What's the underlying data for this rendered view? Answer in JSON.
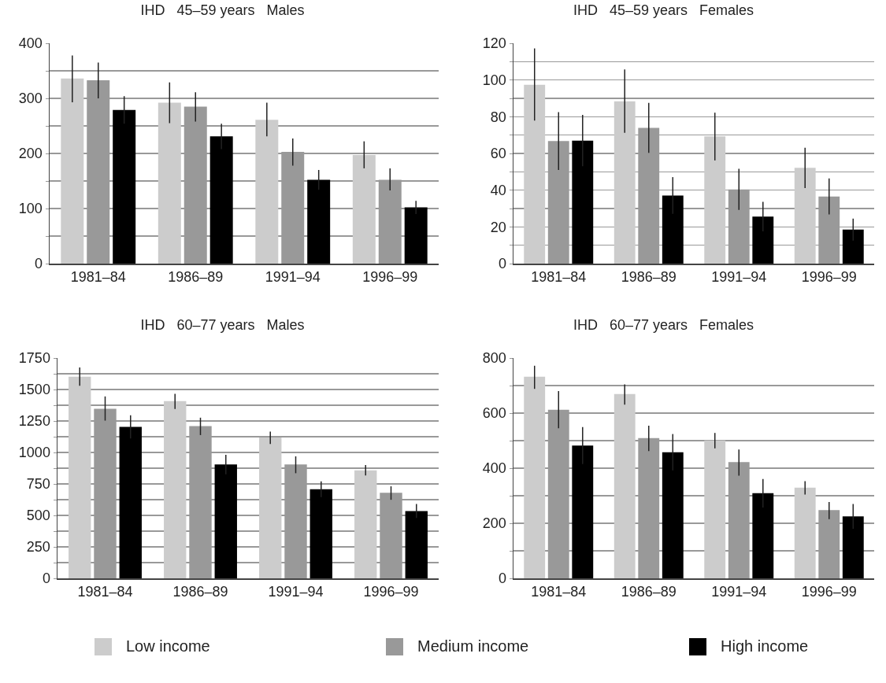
{
  "chart_data": [
    {
      "type": "bar",
      "title": "IHD   45–59 years   Males",
      "categories": [
        "1981–84",
        "1986–89",
        "1991–94",
        "1996–99"
      ],
      "ylim": [
        0,
        400
      ],
      "yticks": [
        0,
        {
          "value": 50,
          "label": null
        },
        100,
        {
          "value": 150,
          "label": null
        },
        200,
        {
          "value": 250,
          "label": null
        },
        300,
        {
          "value": 350,
          "label": null
        },
        400
      ],
      "grid": "y",
      "series": [
        {
          "color": "#cccccc",
          "values": [
            336,
            292,
            261,
            197
          ],
          "errors": [
            [
              293,
              378
            ],
            [
              255,
              329
            ],
            [
              231,
              292
            ],
            [
              173,
              222
            ]
          ]
        },
        {
          "color": "#999999",
          "values": [
            333,
            285,
            203,
            152
          ],
          "errors": [
            [
              300,
              365
            ],
            [
              258,
              311
            ],
            [
              178,
              227
            ],
            [
              133,
              173
            ]
          ]
        },
        {
          "color": "#000000",
          "values": [
            279,
            231,
            152,
            102
          ],
          "errors": [
            25,
            23,
            18,
            12
          ]
        }
      ]
    },
    {
      "type": "bar",
      "title": "IHD   45–59 years   Females",
      "categories": [
        "1981–84",
        "1986–89",
        "1991–94",
        "1996–99"
      ],
      "ylim": [
        0,
        120
      ],
      "yticks": [
        0,
        {
          "value": 10,
          "label": null
        },
        20,
        {
          "value": 30,
          "label": null
        },
        40,
        {
          "value": 50,
          "label": null
        },
        60,
        {
          "value": 70,
          "label": null
        },
        80,
        {
          "value": 90,
          "label": null
        },
        100,
        {
          "value": 110,
          "label": null
        },
        120
      ],
      "grid": "y",
      "series": [
        {
          "color": "#cccccc",
          "values": [
            97.4,
            88.4,
            69.3,
            52.2
          ],
          "errors": [
            [
              77.9,
              117.2
            ],
            [
              71.3,
              105.7
            ],
            [
              56.2,
              82.2
            ],
            [
              41.1,
              63.1
            ]
          ]
        },
        {
          "color": "#999999",
          "values": [
            66.7,
            73.9,
            40.4,
            36.5
          ],
          "errors": [
            [
              51.0,
              82.5
            ],
            [
              60.3,
              87.5
            ],
            [
              29.3,
              51.6
            ],
            [
              26.8,
              46.4
            ]
          ]
        },
        {
          "color": "#000000",
          "values": [
            67.0,
            37.1,
            25.6,
            18.5
          ],
          "errors": [
            14,
            10,
            8,
            6
          ]
        }
      ]
    },
    {
      "type": "bar",
      "title": "IHD   60–77 years   Males",
      "categories": [
        "1981–84",
        "1986–89",
        "1991–94",
        "1996–99"
      ],
      "ylim": [
        0,
        1750
      ],
      "yticks": [
        0,
        {
          "value": 125,
          "label": null
        },
        250,
        {
          "value": 375,
          "label": null
        },
        500,
        {
          "value": 625,
          "label": null
        },
        750,
        {
          "value": 875,
          "label": null
        },
        1000,
        {
          "value": 1125,
          "label": null
        },
        1250,
        {
          "value": 1375,
          "label": null
        },
        1500,
        {
          "value": 1625,
          "label": null
        },
        1750
      ],
      "grid": "y",
      "series": [
        {
          "color": "#cccccc",
          "values": [
            1602,
            1408,
            1119,
            858
          ],
          "errors": [
            [
              1529,
              1675
            ],
            [
              1345,
              1466
            ],
            [
              1067,
              1165
            ],
            [
              817,
              900
            ]
          ]
        },
        {
          "color": "#999999",
          "values": [
            1347,
            1209,
            904,
            679
          ],
          "errors": [
            [
              1253,
              1445
            ],
            [
              1138,
              1276
            ],
            [
              835,
              969
            ],
            [
              624,
              731
            ]
          ]
        },
        {
          "color": "#000000",
          "values": [
            1203,
            904,
            708,
            535
          ],
          "errors": [
            92,
            78,
            63,
            56
          ]
        }
      ]
    },
    {
      "type": "bar",
      "title": "IHD   60–77 years   Females",
      "categories": [
        "1981–84",
        "1986–89",
        "1991–94",
        "1996–99"
      ],
      "ylim": [
        0,
        800
      ],
      "yticks": [
        0,
        {
          "value": 100,
          "label": null
        },
        200,
        {
          "value": 300,
          "label": null
        },
        400,
        {
          "value": 500,
          "label": null
        },
        600,
        {
          "value": 700,
          "label": null
        },
        800
      ],
      "grid": "y",
      "legend": "bottom",
      "series": [
        {
          "name": "Low income",
          "color": "#cccccc",
          "values": [
            732,
            669,
            501,
            329
          ],
          "errors": [
            [
              688,
              772
            ],
            [
              631,
              704
            ],
            [
              472,
              528
            ],
            [
              304,
              353
            ]
          ]
        },
        {
          "name": "Medium income",
          "color": "#999999",
          "values": [
            612,
            509,
            422,
            248
          ],
          "errors": [
            [
              545,
              680
            ],
            [
              462,
              554
            ],
            [
              373,
              468
            ],
            [
              215,
              277
            ]
          ]
        },
        {
          "name": "High income",
          "color": "#000000",
          "values": [
            482,
            458,
            309,
            225
          ],
          "errors": [
            67,
            66,
            52,
            45
          ]
        }
      ]
    }
  ]
}
